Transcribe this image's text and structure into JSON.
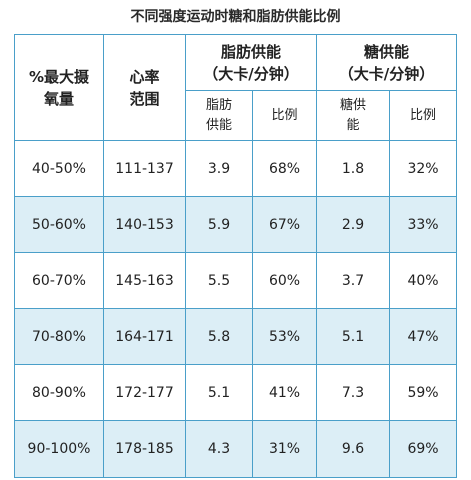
{
  "title": "不同强度运动时糖和脂肪供能比例",
  "headers": {
    "col1_line1": "%最大摄",
    "col1_line2": "氧量",
    "col2_line1": "心率",
    "col2_line2": "范围",
    "fat_group_line1": "脂肪供能",
    "fat_group_line2": "（大卡/分钟）",
    "sugar_group_line1": "糖供能",
    "sugar_group_line2": "（大卡/分钟）",
    "fat_sub1_line1": "脂肪",
    "fat_sub1_line2": "供能",
    "fat_sub2": "比例",
    "sugar_sub1_line1": "糖供",
    "sugar_sub1_line2": "能",
    "sugar_sub2": "比例"
  },
  "rows": [
    {
      "vo2": "40-50%",
      "hr": "111-137",
      "fat": "3.9",
      "fat_pct": "68%",
      "sugar": "1.8",
      "sugar_pct": "32%"
    },
    {
      "vo2": "50-60%",
      "hr": "140-153",
      "fat": "5.9",
      "fat_pct": "67%",
      "sugar": "2.9",
      "sugar_pct": "33%"
    },
    {
      "vo2": "60-70%",
      "hr": "145-163",
      "fat": "5.5",
      "fat_pct": "60%",
      "sugar": "3.7",
      "sugar_pct": "40%"
    },
    {
      "vo2": "70-80%",
      "hr": "164-171",
      "fat": "5.8",
      "fat_pct": "53%",
      "sugar": "5.1",
      "sugar_pct": "47%"
    },
    {
      "vo2": "80-90%",
      "hr": "172-177",
      "fat": "5.1",
      "fat_pct": "41%",
      "sugar": "7.3",
      "sugar_pct": "59%"
    },
    {
      "vo2": "90-100%",
      "hr": "178-185",
      "fat": "4.3",
      "fat_pct": "31%",
      "sugar": "9.6",
      "sugar_pct": "69%"
    }
  ],
  "colors": {
    "border": "#4a9fc9",
    "row_alt": "#dceef6"
  }
}
